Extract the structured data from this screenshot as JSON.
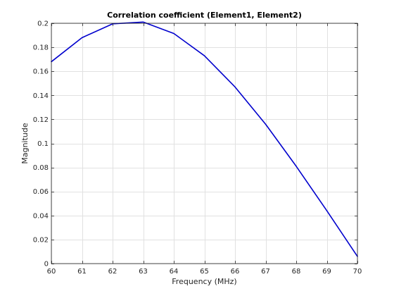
{
  "chart_data": {
    "type": "line",
    "title": "Correlation coefficient (Element1, Element2)",
    "xlabel": "Frequency (MHz)",
    "ylabel": "Magnitude",
    "xlim": [
      60,
      70
    ],
    "ylim": [
      0,
      0.2
    ],
    "xticks": [
      60,
      61,
      62,
      63,
      64,
      65,
      66,
      67,
      68,
      69,
      70
    ],
    "xtick_labels": [
      "60",
      "61",
      "62",
      "63",
      "64",
      "65",
      "66",
      "67",
      "68",
      "69",
      "70"
    ],
    "yticks": [
      0,
      0.02,
      0.04,
      0.06,
      0.08,
      0.1,
      0.12,
      0.14,
      0.16,
      0.18,
      0.2
    ],
    "ytick_labels": [
      "0",
      "0.02",
      "0.04",
      "0.06",
      "0.08",
      "0.1",
      "0.12",
      "0.14",
      "0.16",
      "0.18",
      "0.2"
    ],
    "grid": true,
    "box": true,
    "series": [
      {
        "color": "#0000cd",
        "x": [
          60,
          61,
          62,
          63,
          64,
          65,
          66,
          67,
          68,
          69,
          70
        ],
        "y": [
          0.168,
          0.188,
          0.1995,
          0.201,
          0.1915,
          0.173,
          0.147,
          0.116,
          0.081,
          0.044,
          0.006
        ]
      }
    ],
    "colors": {
      "grid": "#e1e1e1",
      "axis": "#262626",
      "background": "#ffffff"
    }
  }
}
